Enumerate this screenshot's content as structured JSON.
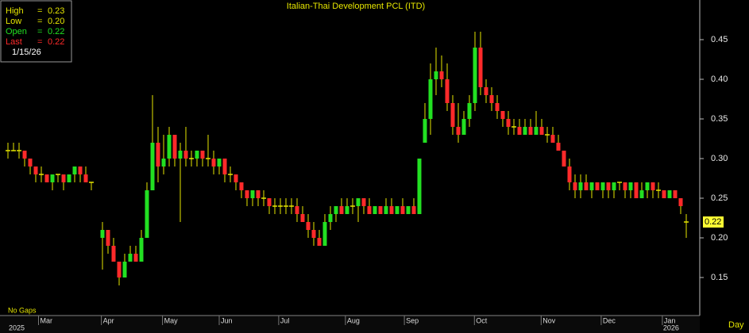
{
  "chart_data": {
    "type": "candlestick",
    "title": "Italian-Thai  Development PCL  (ITD)",
    "ylim": [
      0.1,
      0.5
    ],
    "yticks": [
      0.15,
      {
        "value": 0.2,
        "label": "0.20"
      },
      0.25,
      {
        "value": 0.3,
        "label": "0.30"
      },
      0.35,
      {
        "value": 0.4,
        "label": "0.40"
      },
      0.45
    ],
    "xticks": [
      {
        "value": 5.5,
        "label": "Mar"
      },
      {
        "value": 16.8,
        "label": "Apr"
      },
      {
        "value": 27.8,
        "label": "May"
      },
      {
        "value": 38,
        "label": "Jun"
      },
      {
        "value": 48.7,
        "label": "Jul"
      },
      {
        "value": 60.7,
        "label": "Aug"
      },
      {
        "value": 71.3,
        "label": "Sep"
      },
      {
        "value": 83.9,
        "label": "Oct"
      },
      {
        "value": 95.9,
        "label": "Nov"
      },
      {
        "value": 106.7,
        "label": "Dec"
      },
      {
        "value": 117.7,
        "label": "Jan"
      }
    ],
    "year_ticks": [
      {
        "value": 0,
        "label": "2025"
      },
      {
        "value": 117.7,
        "label": "2026"
      }
    ],
    "gaps_note": "No  Gaps",
    "period": "Day",
    "colors": {
      "up": "#22e022",
      "down": "#ff2a2a",
      "flat": "#e6e600"
    },
    "info": {
      "labels": [
        "High",
        "Low",
        "Open",
        "Last"
      ],
      "separator": "=",
      "values": [
        0.23,
        {
          "value": 0.2,
          "label": "0.20"
        },
        0.22,
        0.22
      ],
      "colors": [
        "#e6e600",
        "#e6e600",
        "#22e022",
        "#ff2a2a"
      ],
      "date": "1/15/26"
    },
    "ohlc": [
      [
        0.31,
        0.32,
        0.3,
        0.31
      ],
      [
        0.31,
        0.32,
        0.31,
        0.31
      ],
      [
        0.31,
        0.32,
        0.3,
        0.31
      ],
      [
        0.31,
        0.31,
        0.29,
        0.3
      ],
      [
        0.3,
        0.3,
        0.28,
        0.29
      ],
      [
        0.29,
        0.29,
        0.27,
        0.28
      ],
      [
        0.28,
        0.29,
        0.27,
        0.28
      ],
      [
        0.28,
        0.28,
        0.27,
        0.27
      ],
      [
        0.27,
        0.28,
        0.26,
        0.28
      ],
      [
        0.28,
        0.28,
        0.27,
        0.28
      ],
      [
        0.28,
        0.28,
        0.26,
        0.27
      ],
      [
        0.27,
        0.28,
        0.27,
        0.28
      ],
      [
        0.28,
        0.29,
        0.27,
        0.29
      ],
      [
        0.29,
        0.29,
        0.27,
        0.28
      ],
      [
        0.28,
        0.29,
        0.27,
        0.27
      ],
      [
        0.27,
        0.27,
        0.26,
        0.27
      ],
      null,
      [
        0.2,
        0.22,
        0.16,
        0.21
      ],
      [
        0.21,
        0.21,
        0.18,
        0.19
      ],
      [
        0.19,
        0.2,
        0.17,
        0.17
      ],
      [
        0.17,
        0.17,
        0.14,
        0.15
      ],
      [
        0.15,
        0.18,
        0.15,
        0.17
      ],
      [
        0.17,
        0.19,
        0.17,
        0.18
      ],
      [
        0.18,
        0.19,
        0.17,
        0.17
      ],
      [
        0.17,
        0.21,
        0.17,
        0.2
      ],
      [
        0.2,
        0.27,
        0.2,
        0.26
      ],
      [
        0.26,
        0.38,
        0.26,
        0.32
      ],
      [
        0.32,
        0.34,
        0.27,
        0.29
      ],
      [
        0.29,
        0.33,
        0.28,
        0.3
      ],
      [
        0.3,
        0.34,
        0.29,
        0.33
      ],
      [
        0.33,
        0.33,
        0.29,
        0.3
      ],
      [
        0.3,
        0.32,
        0.22,
        0.31
      ],
      [
        0.31,
        0.34,
        0.29,
        0.3
      ],
      [
        0.3,
        0.31,
        0.29,
        0.3
      ],
      [
        0.3,
        0.31,
        0.29,
        0.31
      ],
      [
        0.31,
        0.31,
        0.29,
        0.3
      ],
      [
        0.3,
        0.33,
        0.29,
        0.3
      ],
      [
        0.3,
        0.31,
        0.28,
        0.29
      ],
      [
        0.29,
        0.3,
        0.28,
        0.3
      ],
      [
        0.3,
        0.3,
        0.27,
        0.28
      ],
      [
        0.28,
        0.29,
        0.27,
        0.28
      ],
      [
        0.28,
        0.28,
        0.26,
        0.27
      ],
      [
        0.27,
        0.27,
        0.25,
        0.26
      ],
      [
        0.26,
        0.26,
        0.24,
        0.25
      ],
      [
        0.25,
        0.26,
        0.24,
        0.26
      ],
      [
        0.26,
        0.26,
        0.24,
        0.25
      ],
      [
        0.25,
        0.26,
        0.24,
        0.25
      ],
      [
        0.25,
        0.25,
        0.23,
        0.24
      ],
      [
        0.24,
        0.25,
        0.23,
        0.24
      ],
      [
        0.24,
        0.25,
        0.23,
        0.24
      ],
      [
        0.24,
        0.25,
        0.23,
        0.24
      ],
      [
        0.24,
        0.25,
        0.23,
        0.24
      ],
      [
        0.24,
        0.25,
        0.22,
        0.23
      ],
      [
        0.23,
        0.24,
        0.22,
        0.22
      ],
      [
        0.22,
        0.23,
        0.2,
        0.21
      ],
      [
        0.21,
        0.22,
        0.19,
        0.2
      ],
      [
        0.2,
        0.21,
        0.19,
        0.19
      ],
      [
        0.19,
        0.23,
        0.19,
        0.22
      ],
      [
        0.22,
        0.24,
        0.21,
        0.23
      ],
      [
        0.23,
        0.24,
        0.22,
        0.24
      ],
      [
        0.24,
        0.25,
        0.23,
        0.23
      ],
      [
        0.23,
        0.25,
        0.23,
        0.24
      ],
      [
        0.24,
        0.25,
        0.23,
        0.24
      ],
      [
        0.24,
        0.25,
        0.22,
        0.25
      ],
      [
        0.25,
        0.25,
        0.23,
        0.24
      ],
      [
        0.24,
        0.25,
        0.23,
        0.23
      ],
      [
        0.23,
        0.24,
        0.23,
        0.24
      ],
      [
        0.24,
        0.24,
        0.23,
        0.23
      ],
      [
        0.23,
        0.25,
        0.23,
        0.24
      ],
      [
        0.24,
        0.25,
        0.23,
        0.23
      ],
      [
        0.23,
        0.24,
        0.23,
        0.24
      ],
      [
        0.24,
        0.25,
        0.23,
        0.23
      ],
      [
        0.23,
        0.24,
        0.23,
        0.24
      ],
      [
        0.24,
        0.25,
        0.23,
        0.23
      ],
      [
        0.23,
        0.3,
        0.23,
        0.3
      ],
      [
        0.32,
        0.37,
        0.32,
        0.35
      ],
      [
        0.35,
        0.42,
        0.33,
        0.4
      ],
      [
        0.4,
        0.44,
        0.38,
        0.41
      ],
      [
        0.41,
        0.43,
        0.39,
        0.4
      ],
      [
        0.4,
        0.42,
        0.36,
        0.37
      ],
      [
        0.37,
        0.38,
        0.33,
        0.34
      ],
      [
        0.34,
        0.37,
        0.32,
        0.33
      ],
      [
        0.33,
        0.36,
        0.33,
        0.35
      ],
      [
        0.35,
        0.38,
        0.34,
        0.37
      ],
      [
        0.37,
        0.46,
        0.36,
        0.44
      ],
      [
        0.44,
        0.46,
        0.38,
        0.39
      ],
      [
        0.39,
        0.4,
        0.37,
        0.38
      ],
      [
        0.38,
        0.39,
        0.36,
        0.37
      ],
      [
        0.37,
        0.38,
        0.35,
        0.36
      ],
      [
        0.36,
        0.36,
        0.34,
        0.35
      ],
      [
        0.35,
        0.36,
        0.33,
        0.34
      ],
      [
        0.34,
        0.35,
        0.33,
        0.34
      ],
      [
        0.34,
        0.35,
        0.33,
        0.33
      ],
      [
        0.33,
        0.35,
        0.33,
        0.34
      ],
      [
        0.34,
        0.35,
        0.33,
        0.33
      ],
      [
        0.33,
        0.36,
        0.33,
        0.34
      ],
      [
        0.34,
        0.35,
        0.33,
        0.33
      ],
      [
        0.33,
        0.34,
        0.32,
        0.33
      ],
      [
        0.33,
        0.34,
        0.32,
        0.32
      ],
      [
        0.32,
        0.33,
        0.31,
        0.31
      ],
      [
        0.31,
        0.31,
        0.29,
        0.29
      ],
      [
        0.29,
        0.3,
        0.26,
        0.27
      ],
      [
        0.27,
        0.28,
        0.25,
        0.26
      ],
      [
        0.26,
        0.28,
        0.25,
        0.27
      ],
      [
        0.27,
        0.28,
        0.26,
        0.26
      ],
      [
        0.26,
        0.27,
        0.25,
        0.27
      ],
      [
        0.27,
        0.27,
        0.26,
        0.26
      ],
      [
        0.26,
        0.27,
        0.25,
        0.27
      ],
      [
        0.27,
        0.27,
        0.25,
        0.26
      ],
      [
        0.26,
        0.27,
        0.25,
        0.27
      ],
      [
        0.27,
        0.27,
        0.26,
        0.27
      ],
      [
        0.27,
        0.27,
        0.25,
        0.26
      ],
      [
        0.26,
        0.27,
        0.25,
        0.27
      ],
      [
        0.27,
        0.27,
        0.25,
        0.25
      ],
      [
        0.25,
        0.27,
        0.25,
        0.26
      ],
      [
        0.26,
        0.27,
        0.25,
        0.27
      ],
      [
        0.27,
        0.27,
        0.25,
        0.26
      ],
      [
        0.26,
        0.27,
        0.25,
        0.26
      ],
      [
        0.26,
        0.26,
        0.25,
        0.25
      ],
      [
        0.25,
        0.26,
        0.25,
        0.26
      ],
      [
        0.26,
        0.26,
        0.25,
        0.25
      ],
      [
        0.25,
        0.25,
        0.23,
        0.24
      ],
      [
        0.22,
        0.23,
        0.2,
        0.22
      ]
    ]
  }
}
